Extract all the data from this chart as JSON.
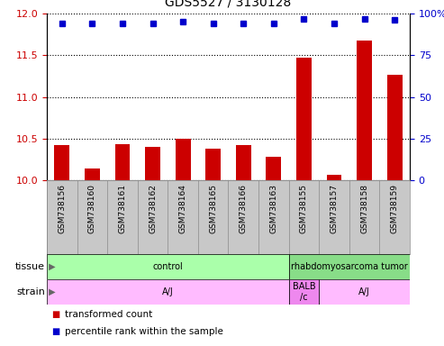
{
  "title": "GDS5527 / 3130128",
  "samples": [
    "GSM738156",
    "GSM738160",
    "GSM738161",
    "GSM738162",
    "GSM738164",
    "GSM738165",
    "GSM738166",
    "GSM738163",
    "GSM738155",
    "GSM738157",
    "GSM738158",
    "GSM738159"
  ],
  "transformed_count": [
    10.42,
    10.14,
    10.43,
    10.4,
    10.5,
    10.38,
    10.42,
    10.28,
    11.47,
    10.06,
    11.68,
    11.27
  ],
  "percentile_rank": [
    94,
    94,
    94,
    94,
    95,
    94,
    94,
    94,
    97,
    94,
    97,
    96
  ],
  "ylim_left": [
    10,
    12
  ],
  "ylim_right": [
    0,
    100
  ],
  "yticks_left": [
    10,
    10.5,
    11,
    11.5,
    12
  ],
  "yticks_right": [
    0,
    25,
    50,
    75,
    100
  ],
  "bar_color": "#cc0000",
  "dot_color": "#0000cc",
  "tissue_labels": [
    {
      "text": "control",
      "start": 0,
      "end": 8,
      "color": "#aaffaa"
    },
    {
      "text": "rhabdomyosarcoma tumor",
      "start": 8,
      "end": 12,
      "color": "#88dd88"
    }
  ],
  "strain_labels": [
    {
      "text": "A/J",
      "start": 0,
      "end": 8,
      "color": "#ffbbff"
    },
    {
      "text": "BALB\n/c",
      "start": 8,
      "end": 9,
      "color": "#ee88ee"
    },
    {
      "text": "A/J",
      "start": 9,
      "end": 12,
      "color": "#ffbbff"
    }
  ],
  "legend_items": [
    {
      "color": "#cc0000",
      "label": "transformed count"
    },
    {
      "color": "#0000cc",
      "label": "percentile rank within the sample"
    }
  ],
  "bar_color_dark": "#cc0000",
  "dot_color_dark": "#0000cc",
  "xtick_bg": "#c8c8c8",
  "xlabel_color": "#cc0000",
  "ylabel_right_color": "#0000cc",
  "tissue_row_label": "tissue",
  "strain_row_label": "strain"
}
